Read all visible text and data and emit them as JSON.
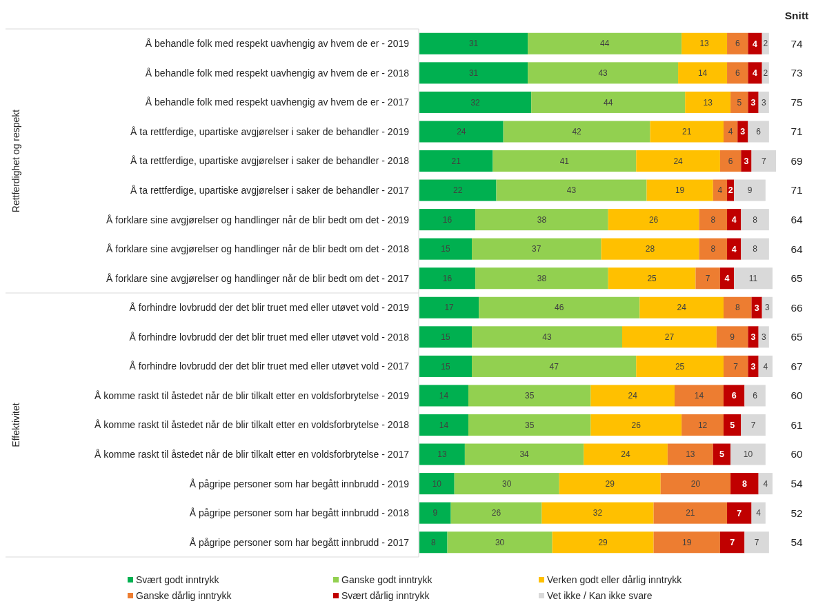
{
  "chart_data": {
    "type": "bar",
    "orientation": "horizontal",
    "stacked": true,
    "data_labels": true,
    "legend": "bottom",
    "tick_labels": "y",
    "xlim": [
      0,
      102
    ],
    "categories": [
      "Å behandle folk med respekt uavhengig av hvem de er - 2019",
      "Å behandle folk med respekt uavhengig av hvem de er - 2018",
      "Å behandle folk med respekt uavhengig av hvem de er - 2017",
      "Å ta rettferdige, upartiske avgjørelser i saker de behandler - 2019",
      "Å ta rettferdige, upartiske avgjørelser i saker de behandler - 2018",
      "Å ta rettferdige, upartiske avgjørelser i saker de behandler - 2017",
      "Å forklare sine avgjørelser og handlinger når de blir bedt om det - 2019",
      "Å forklare sine avgjørelser og handlinger når de blir bedt om det - 2018",
      "Å forklare sine avgjørelser og handlinger når de blir bedt om det - 2017",
      "Å forhindre lovbrudd der det blir truet med eller utøvet vold - 2019",
      "Å forhindre lovbrudd der det blir truet med eller utøvet vold - 2018",
      "Å forhindre lovbrudd der det blir truet med eller utøvet vold - 2017",
      "Å komme raskt til åstedet når de blir tilkalt etter en voldsforbrytelse - 2019",
      "Å komme raskt til åstedet når de blir tilkalt etter en voldsforbrytelse - 2018",
      "Å komme raskt til åstedet når de blir tilkalt etter en voldsforbrytelse - 2017",
      "Å pågripe personer som har begått innbrudd - 2019",
      "Å pågripe personer som har begått innbrudd - 2018",
      "Å pågripe personer som har begått innbrudd - 2017"
    ],
    "series": [
      {
        "name": "Svært godt inntrykk",
        "color": "#00b050",
        "values": [
          31,
          31,
          32,
          24,
          21,
          22,
          16,
          15,
          16,
          17,
          15,
          15,
          14,
          14,
          13,
          10,
          9,
          8
        ]
      },
      {
        "name": "Ganske godt inntrykk",
        "color": "#92d050",
        "values": [
          44,
          43,
          44,
          42,
          41,
          43,
          38,
          37,
          38,
          46,
          43,
          47,
          35,
          35,
          34,
          30,
          26,
          30
        ]
      },
      {
        "name": "Verken godt eller dårlig inntrykk",
        "color": "#ffc000",
        "values": [
          13,
          14,
          13,
          21,
          24,
          19,
          26,
          28,
          25,
          24,
          27,
          25,
          24,
          26,
          24,
          29,
          32,
          29
        ]
      },
      {
        "name": "Ganske dårlig inntrykk",
        "color": "#ed7d31",
        "values": [
          6,
          6,
          5,
          4,
          6,
          4,
          8,
          8,
          7,
          8,
          9,
          7,
          14,
          12,
          13,
          20,
          21,
          19
        ]
      },
      {
        "name": "Svært dårlig inntrykk",
        "color": "#c00000",
        "values": [
          4,
          4,
          3,
          3,
          3,
          2,
          4,
          4,
          4,
          3,
          3,
          3,
          6,
          5,
          5,
          8,
          7,
          7
        ]
      },
      {
        "name": "Vet ikke / Kan ikke svare",
        "color": "#d9d9d9",
        "values": [
          2,
          2,
          3,
          6,
          7,
          9,
          8,
          8,
          11,
          3,
          3,
          4,
          6,
          7,
          10,
          4,
          4,
          7
        ]
      }
    ],
    "annotations": [
      "Snitt",
      "74",
      "73",
      "75",
      "71",
      "69",
      "71",
      "64",
      "64",
      "65",
      "66",
      "65",
      "67",
      "60",
      "61",
      "60",
      "54",
      "52",
      "54",
      "Rettferdighet og respekt",
      "Effektivitet"
    ]
  }
}
